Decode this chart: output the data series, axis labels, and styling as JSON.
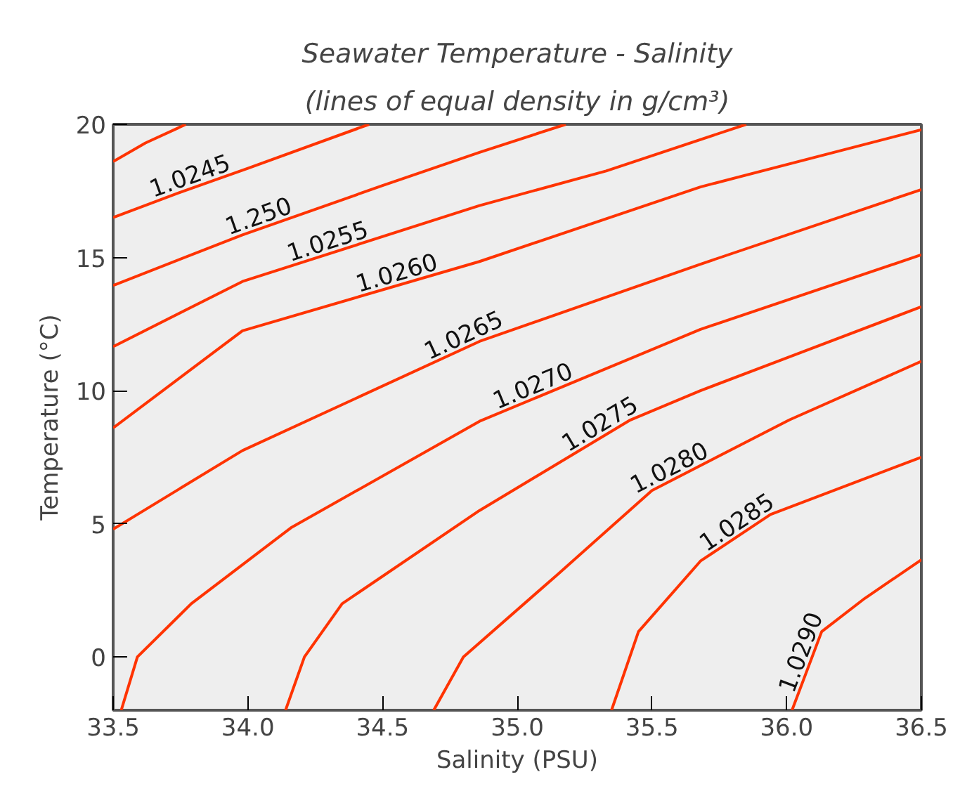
{
  "chart_data": {
    "type": "line",
    "title": "Seawater Temperature - Salinity",
    "subtitle": "(lines of equal density in g/cm³)",
    "xlabel": "Salinity (PSU)",
    "ylabel": "Temperature (°C)",
    "xlim": [
      33.5,
      36.5
    ],
    "ylim": [
      -2,
      20
    ],
    "xticks": [
      {
        "value": 33.5,
        "label": "33.5"
      },
      {
        "value": 34.0,
        "label": "34.0"
      },
      {
        "value": 34.5,
        "label": "34.5"
      },
      {
        "value": 35.0,
        "label": "35.0"
      },
      {
        "value": 35.5,
        "label": "35.5"
      },
      {
        "value": 36.0,
        "label": "36.0"
      },
      {
        "value": 36.5,
        "label": "36.5"
      }
    ],
    "yticks": [
      0,
      5,
      10,
      15,
      20
    ],
    "grid": false,
    "legend": false,
    "marker": "none",
    "line_style": "solid",
    "series": [
      {
        "color": "#ff3300",
        "x": [
          33.5,
          33.62,
          33.77
        ],
        "values": [
          18.6,
          19.3,
          20
        ]
      },
      {
        "name": "1.0245",
        "color": "#ff3300",
        "x": [
          33.5,
          33.75,
          34.0,
          34.45
        ],
        "values": [
          16.5,
          17.45,
          18.35,
          20
        ]
      },
      {
        "name": "1.250",
        "color": "#ff3300",
        "x": [
          33.5,
          33.98,
          34.5,
          34.86,
          35.18
        ],
        "values": [
          13.95,
          15.85,
          17.7,
          18.95,
          20
        ]
      },
      {
        "name": "1.0255",
        "color": "#ff3300",
        "x": [
          33.5,
          33.98,
          34.86,
          35.33,
          35.85
        ],
        "values": [
          11.65,
          14.1,
          16.95,
          18.25,
          20
        ]
      },
      {
        "name": "1.0260",
        "color": "#ff3300",
        "x": [
          33.5,
          33.98,
          34.86,
          35.68,
          36.5
        ],
        "values": [
          8.6,
          12.25,
          14.85,
          17.65,
          19.8
        ]
      },
      {
        "name": "1.0265",
        "color": "#ff3300",
        "x": [
          33.5,
          33.98,
          34.86,
          35.68,
          36.5
        ],
        "values": [
          4.8,
          7.75,
          11.85,
          14.75,
          17.55
        ]
      },
      {
        "name": "1.0270",
        "color": "#ff3300",
        "x": [
          33.53,
          33.59,
          33.79,
          34.16,
          34.86,
          35.68,
          36.5
        ],
        "values": [
          -2,
          0,
          2,
          4.85,
          8.85,
          12.3,
          15.1
        ]
      },
      {
        "name": "1.0275",
        "color": "#ff3300",
        "x": [
          34.14,
          34.21,
          34.35,
          34.86,
          35.42,
          35.68,
          36.5
        ],
        "values": [
          -2,
          0,
          2,
          5.5,
          8.9,
          10,
          13.15
        ]
      },
      {
        "name": "1.0280",
        "color": "#ff3300",
        "x": [
          34.69,
          34.8,
          35.15,
          35.5,
          36.01,
          36.5
        ],
        "values": [
          -2,
          0,
          3.1,
          6.25,
          8.9,
          11.1
        ]
      },
      {
        "name": "1.0285",
        "color": "#ff3300",
        "x": [
          35.35,
          35.45,
          35.68,
          35.94,
          36.5
        ],
        "values": [
          -2,
          0.95,
          3.6,
          5.35,
          7.5
        ]
      },
      {
        "name": "1.0290",
        "color": "#ff3300",
        "x": [
          36.02,
          36.13,
          36.29,
          36.5
        ],
        "values": [
          -2,
          0.95,
          2.2,
          3.65
        ]
      }
    ]
  }
}
